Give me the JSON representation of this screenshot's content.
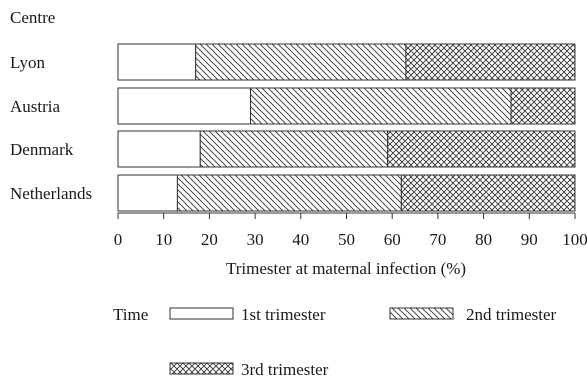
{
  "chart_data": {
    "type": "bar",
    "orientation": "horizontal",
    "stacked": true,
    "ylabel": "Centre",
    "xlabel": "Trimester at maternal infection (%)",
    "categories": [
      "Lyon",
      "Austria",
      "Denmark",
      "Netherlands"
    ],
    "series": [
      {
        "name": "1st trimester",
        "values": [
          17,
          29,
          18,
          13
        ],
        "pattern": "none"
      },
      {
        "name": "2nd trimester",
        "values": [
          46,
          57,
          41,
          49
        ],
        "pattern": "diagonal"
      },
      {
        "name": "3rd trimester",
        "values": [
          37,
          14,
          41,
          38
        ],
        "pattern": "crosshatch"
      }
    ],
    "xlim": [
      0,
      100
    ],
    "xticks": [
      0,
      10,
      20,
      30,
      40,
      50,
      60,
      70,
      80,
      90,
      100
    ],
    "legend_title": "Time",
    "legend_position": "bottom",
    "grid": false
  }
}
